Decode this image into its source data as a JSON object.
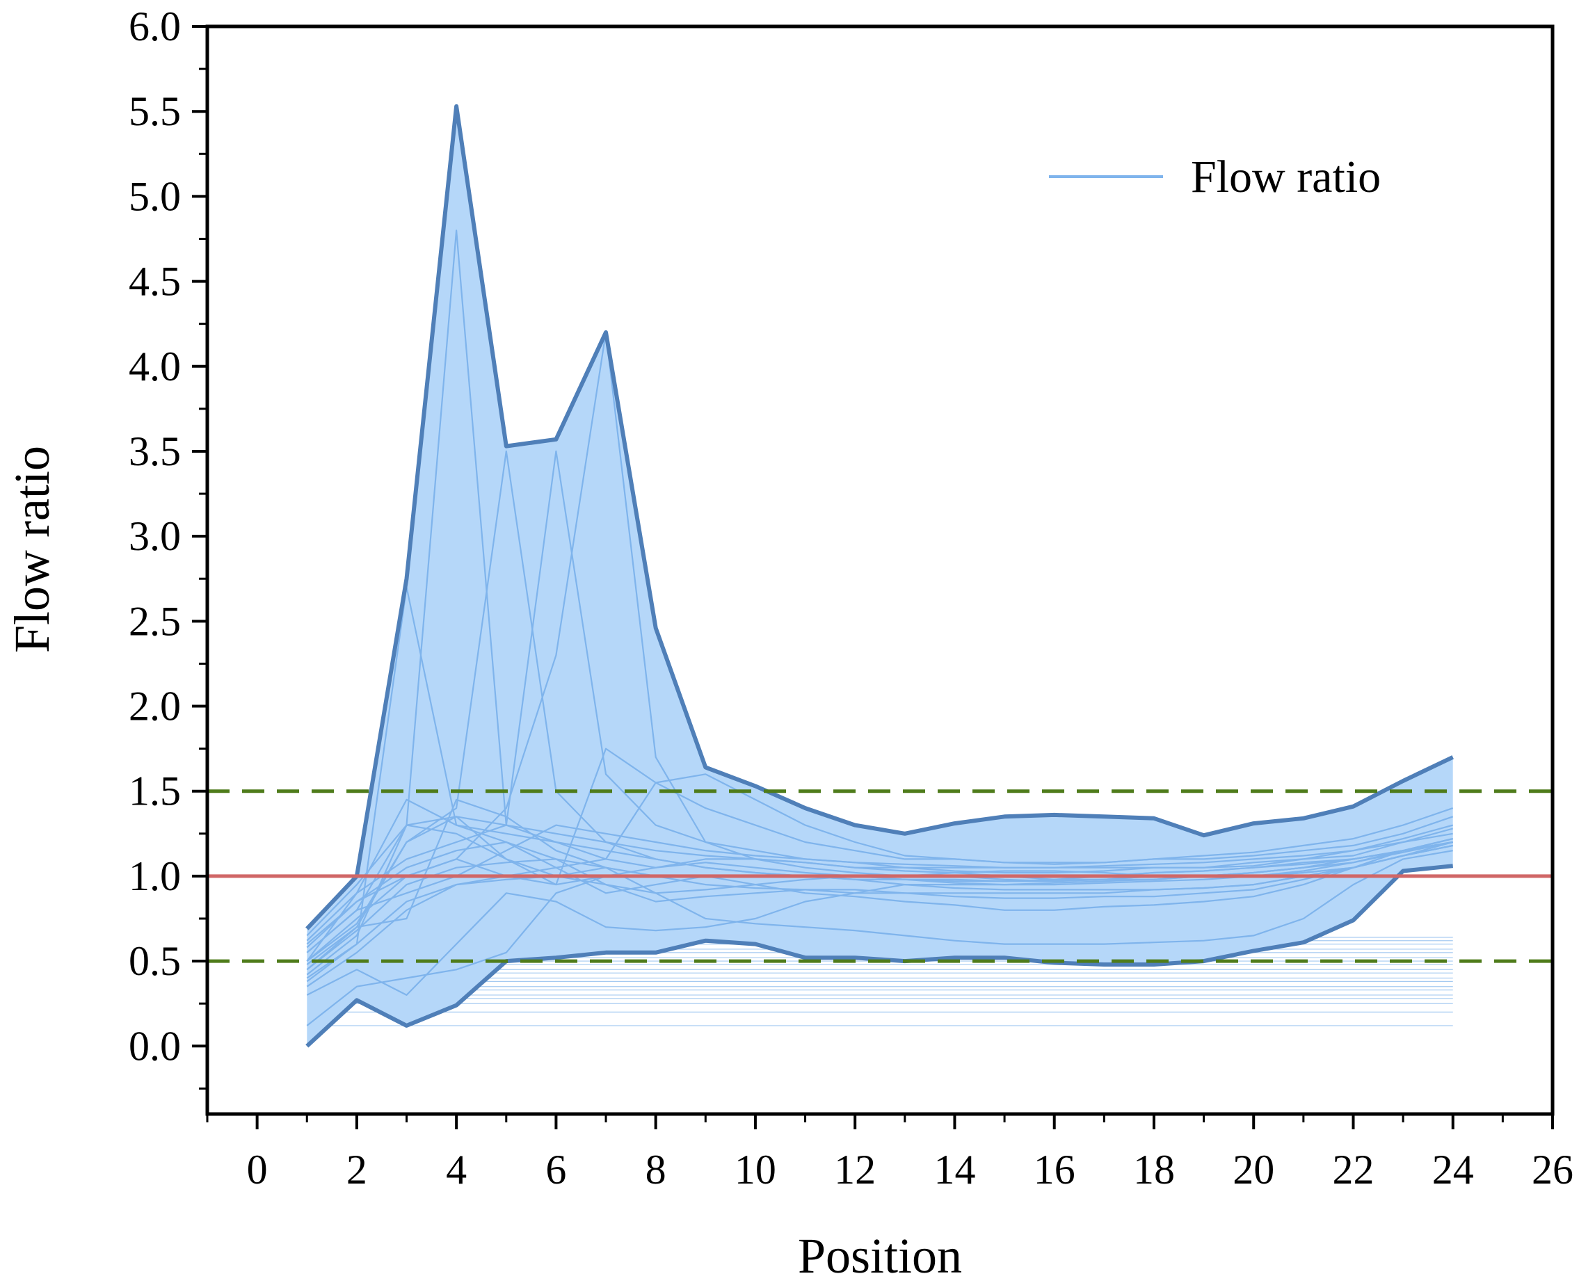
{
  "chart_data": {
    "type": "area",
    "title": "",
    "xlabel": "Position",
    "ylabel": "Flow ratio",
    "xlim": [
      -1,
      26
    ],
    "ylim": [
      -0.4,
      6.0
    ],
    "xticks": [
      0,
      2,
      4,
      6,
      8,
      10,
      12,
      14,
      16,
      18,
      20,
      22,
      24,
      26
    ],
    "xtick_labels": [
      "0",
      "2",
      "4",
      "6",
      "8",
      "10",
      "12",
      "14",
      "16",
      "18",
      "20",
      "22",
      "24",
      "26"
    ],
    "yticks": [
      0.0,
      0.5,
      1.0,
      1.5,
      2.0,
      2.5,
      3.0,
      3.5,
      4.0,
      4.5,
      5.0,
      5.5,
      6.0
    ],
    "ytick_labels": [
      "0.0",
      "0.5",
      "1.0",
      "1.5",
      "2.0",
      "2.5",
      "3.0",
      "3.5",
      "4.0",
      "4.5",
      "5.0",
      "5.5",
      "6.0"
    ],
    "legend": {
      "label": "Flow ratio",
      "location": "top-right"
    },
    "colors": {
      "band_fill": "#b5d7f9",
      "envelope": "#4f7fb8",
      "series": "#7fb4ec",
      "reference": "#d06767",
      "threshold": "#4f7c1b"
    },
    "x": [
      1,
      2,
      3,
      4,
      5,
      6,
      7,
      8,
      9,
      10,
      11,
      12,
      13,
      14,
      15,
      16,
      17,
      18,
      19,
      20,
      21,
      22,
      23,
      24
    ],
    "envelope_upper": [
      0.69,
      1.0,
      2.75,
      5.53,
      3.53,
      3.57,
      4.2,
      2.46,
      1.64,
      1.53,
      1.4,
      1.3,
      1.25,
      1.31,
      1.35,
      1.36,
      1.35,
      1.34,
      1.24,
      1.31,
      1.34,
      1.41,
      1.56,
      1.7
    ],
    "envelope_lower": [
      0.0,
      0.27,
      0.12,
      0.24,
      0.5,
      0.52,
      0.55,
      0.55,
      0.62,
      0.6,
      0.52,
      0.52,
      0.5,
      0.52,
      0.52,
      0.49,
      0.48,
      0.48,
      0.5,
      0.56,
      0.61,
      0.74,
      1.03,
      1.06
    ],
    "reference_lines": [
      {
        "y": 1.0,
        "style": "solid"
      }
    ],
    "threshold_lines": [
      {
        "y": 1.5,
        "style": "dashed"
      },
      {
        "y": 0.5,
        "style": "dashed"
      }
    ],
    "series": [
      {
        "name": "s1",
        "values": [
          0.55,
          0.8,
          1.3,
          4.8,
          1.3,
          1.2,
          1.1,
          1.05,
          1.1,
          1.1,
          1.08,
          1.05,
          1.05,
          1.03,
          1.02,
          1.02,
          1.03,
          1.05,
          1.05,
          1.08,
          1.1,
          1.12,
          1.2,
          1.25
        ]
      },
      {
        "name": "s2",
        "values": [
          0.45,
          0.7,
          1.2,
          1.4,
          3.5,
          1.5,
          1.2,
          1.1,
          1.05,
          1.02,
          1.0,
          1.0,
          1.0,
          1.0,
          1.0,
          0.98,
          0.98,
          1.0,
          1.0,
          1.02,
          1.05,
          1.1,
          1.15,
          1.2
        ]
      },
      {
        "name": "s3",
        "values": [
          0.5,
          0.9,
          1.1,
          1.2,
          1.3,
          3.5,
          1.6,
          1.3,
          1.2,
          1.15,
          1.1,
          1.08,
          1.05,
          1.05,
          1.05,
          1.05,
          1.05,
          1.05,
          1.05,
          1.06,
          1.1,
          1.15,
          1.22,
          1.3
        ]
      },
      {
        "name": "s4",
        "values": [
          0.6,
          0.85,
          1.0,
          1.1,
          1.4,
          2.3,
          4.2,
          1.7,
          1.2,
          1.1,
          1.05,
          1.02,
          1.0,
          1.0,
          0.98,
          0.97,
          0.98,
          1.0,
          1.0,
          1.02,
          1.05,
          1.1,
          1.15,
          1.2
        ]
      },
      {
        "name": "s5",
        "values": [
          0.4,
          0.6,
          2.7,
          1.3,
          1.2,
          1.1,
          1.05,
          1.0,
          1.0,
          1.0,
          1.0,
          0.98,
          0.98,
          0.98,
          0.97,
          0.97,
          0.98,
          0.98,
          1.0,
          1.0,
          1.02,
          1.05,
          1.12,
          1.18
        ]
      },
      {
        "name": "s6",
        "values": [
          0.5,
          0.75,
          1.0,
          1.1,
          1.0,
          0.95,
          1.75,
          1.55,
          1.4,
          1.3,
          1.2,
          1.15,
          1.1,
          1.1,
          1.08,
          1.08,
          1.08,
          1.1,
          1.1,
          1.12,
          1.15,
          1.18,
          1.25,
          1.35
        ]
      },
      {
        "name": "s7",
        "values": [
          0.35,
          0.55,
          0.8,
          0.95,
          1.0,
          1.05,
          1.1,
          1.55,
          1.6,
          1.45,
          1.3,
          1.2,
          1.12,
          1.1,
          1.08,
          1.07,
          1.08,
          1.1,
          1.12,
          1.14,
          1.18,
          1.22,
          1.3,
          1.4
        ]
      },
      {
        "name": "s8",
        "values": [
          0.12,
          0.35,
          0.4,
          0.45,
          0.55,
          0.9,
          1.0,
          1.0,
          1.0,
          0.95,
          0.9,
          0.88,
          0.85,
          0.83,
          0.8,
          0.8,
          0.82,
          0.83,
          0.85,
          0.88,
          0.95,
          1.05,
          1.15,
          1.22
        ]
      },
      {
        "name": "s9",
        "values": [
          0.3,
          0.45,
          0.3,
          0.6,
          0.9,
          0.85,
          0.7,
          0.68,
          0.7,
          0.75,
          0.85,
          0.9,
          0.95,
          0.95,
          0.95,
          0.96,
          0.97,
          0.98,
          1.0,
          1.0,
          1.02,
          1.05,
          1.12,
          1.18
        ]
      },
      {
        "name": "s10",
        "values": [
          0.62,
          0.9,
          1.45,
          1.3,
          1.25,
          1.2,
          1.15,
          1.1,
          1.05,
          1.02,
          1.0,
          0.98,
          0.95,
          0.93,
          0.92,
          0.92,
          0.92,
          0.92,
          0.93,
          0.95,
          1.0,
          1.05,
          1.12,
          1.2
        ]
      },
      {
        "name": "s11",
        "values": [
          0.42,
          0.65,
          1.3,
          1.25,
          1.1,
          1.0,
          0.95,
          0.9,
          0.92,
          0.95,
          0.98,
          1.0,
          1.0,
          1.02,
          1.03,
          1.03,
          1.02,
          1.0,
          1.0,
          1.02,
          1.05,
          1.08,
          1.15,
          1.2
        ]
      },
      {
        "name": "s12",
        "values": [
          0.55,
          0.8,
          0.9,
          1.0,
          1.15,
          1.3,
          1.25,
          1.2,
          1.15,
          1.12,
          1.1,
          1.08,
          1.07,
          1.06,
          1.05,
          1.05,
          1.06,
          1.07,
          1.08,
          1.1,
          1.12,
          1.15,
          1.2,
          1.28
        ]
      },
      {
        "name": "s13",
        "values": [
          0.38,
          0.6,
          0.85,
          0.95,
          0.98,
          1.0,
          1.05,
          0.9,
          0.75,
          0.72,
          0.7,
          0.68,
          0.65,
          0.62,
          0.6,
          0.6,
          0.6,
          0.61,
          0.62,
          0.65,
          0.75,
          0.95,
          1.1,
          1.15
        ]
      },
      {
        "name": "s14",
        "values": [
          0.5,
          0.72,
          1.2,
          1.35,
          1.1,
          0.95,
          1.0,
          1.05,
          1.08,
          1.05,
          1.02,
          1.0,
          0.98,
          0.97,
          0.97,
          0.98,
          1.0,
          1.02,
          1.03,
          1.05,
          1.08,
          1.1,
          1.15,
          1.22
        ]
      },
      {
        "name": "s15",
        "values": [
          0.65,
          0.95,
          1.3,
          1.35,
          1.3,
          1.25,
          1.2,
          1.15,
          1.12,
          1.1,
          1.08,
          1.05,
          1.03,
          1.02,
          1.0,
          1.0,
          1.0,
          1.02,
          1.03,
          1.05,
          1.07,
          1.1,
          1.15,
          1.22
        ]
      },
      {
        "name": "s16",
        "values": [
          0.45,
          0.68,
          0.95,
          1.05,
          1.08,
          1.1,
          0.95,
          0.85,
          0.88,
          0.9,
          0.92,
          0.92,
          0.9,
          0.88,
          0.87,
          0.87,
          0.88,
          0.88,
          0.9,
          0.92,
          0.98,
          1.05,
          1.12,
          1.18
        ]
      },
      {
        "name": "s17",
        "values": [
          0.58,
          0.85,
          1.05,
          1.15,
          1.2,
          1.05,
          0.9,
          0.95,
          1.0,
          1.0,
          1.0,
          1.0,
          0.98,
          0.96,
          0.95,
          0.95,
          0.96,
          0.97,
          0.98,
          1.0,
          1.03,
          1.08,
          1.14,
          1.2
        ]
      },
      {
        "name": "s18",
        "values": [
          0.48,
          0.7,
          0.75,
          1.45,
          1.35,
          1.15,
          1.05,
          1.0,
          0.95,
          0.93,
          0.92,
          0.9,
          0.9,
          0.9,
          0.9,
          0.9,
          0.9,
          0.92,
          0.93,
          0.95,
          1.0,
          1.05,
          1.12,
          1.18
        ]
      }
    ],
    "baseline_band_values": [
      0.12,
      0.2,
      0.25,
      0.28,
      0.3,
      0.33,
      0.35,
      0.38,
      0.4,
      0.43,
      0.45,
      0.48,
      0.5,
      0.52,
      0.55,
      0.57,
      0.6,
      0.62,
      0.64
    ]
  }
}
